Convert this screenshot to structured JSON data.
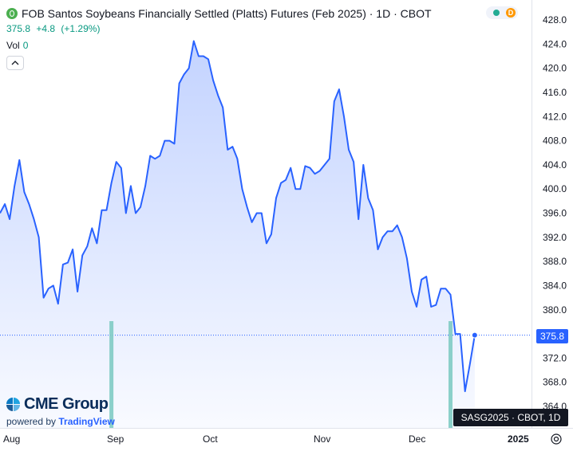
{
  "header": {
    "title": "FOB Santos Soybeans Financially Settled (Platts) Futures (Feb 2025) · 1D · CBOT",
    "last": "375.8",
    "change": "+4.8",
    "change_pct": "(+1.29%)",
    "vol_label": "Vol",
    "vol_value": "0",
    "status_badge": "D"
  },
  "branding": {
    "name": "CME Group",
    "powered_prefix": "powered by ",
    "powered_brand": "TradingView"
  },
  "tooltip": "SASG2025 · CBOT, 1D",
  "price_badge": "375.8",
  "colors": {
    "line": "#2962ff",
    "up": "#089981",
    "volume": "#80cbc4",
    "badge": "#2962ff"
  },
  "chart_data": {
    "type": "area",
    "xlabels": [
      "Aug",
      "Sep",
      "Oct",
      "Nov",
      "Dec",
      "2025"
    ],
    "ylabels": [
      "428.0",
      "424.0",
      "420.0",
      "416.0",
      "412.0",
      "408.0",
      "404.0",
      "400.0",
      "396.0",
      "392.0",
      "388.0",
      "384.0",
      "380.0",
      "376.0",
      "372.0",
      "368.0",
      "364.0"
    ],
    "ylim": [
      363,
      429.5
    ],
    "grid": false,
    "last_value": 375.8,
    "values": [
      396.0,
      397.5,
      395.0,
      400.5,
      404.8,
      399.5,
      397.5,
      395.0,
      392.0,
      382.0,
      383.5,
      384.0,
      381.0,
      387.5,
      387.8,
      390.0,
      383.0,
      389.0,
      390.5,
      393.5,
      391.0,
      396.5,
      396.5,
      401.0,
      404.5,
      403.5,
      396.0,
      400.5,
      396.0,
      397.0,
      400.5,
      405.5,
      405.0,
      405.5,
      408.0,
      408.0,
      407.5,
      417.5,
      419.0,
      420.0,
      424.5,
      422.0,
      422.0,
      421.5,
      418.0,
      415.5,
      413.5,
      406.5,
      407.0,
      405.0,
      400.0,
      397.0,
      394.5,
      396.0,
      396.0,
      391.0,
      392.5,
      398.5,
      401.0,
      401.5,
      403.5,
      400.0,
      400.0,
      403.8,
      403.5,
      402.5,
      403.0,
      404.0,
      405.0,
      414.5,
      416.5,
      412.0,
      406.5,
      404.5,
      395.0,
      404.0,
      398.5,
      396.5,
      390.0,
      392.0,
      393.0,
      393.0,
      394.0,
      392.0,
      388.5,
      383.0,
      380.5,
      385.0,
      385.5,
      380.5,
      380.8,
      383.5,
      383.5,
      382.5,
      376.0,
      376.0,
      366.5,
      371.0,
      375.8
    ],
    "volume_bars": [
      {
        "index": 23,
        "value": 1
      },
      {
        "index": 93,
        "value": 1
      }
    ]
  }
}
